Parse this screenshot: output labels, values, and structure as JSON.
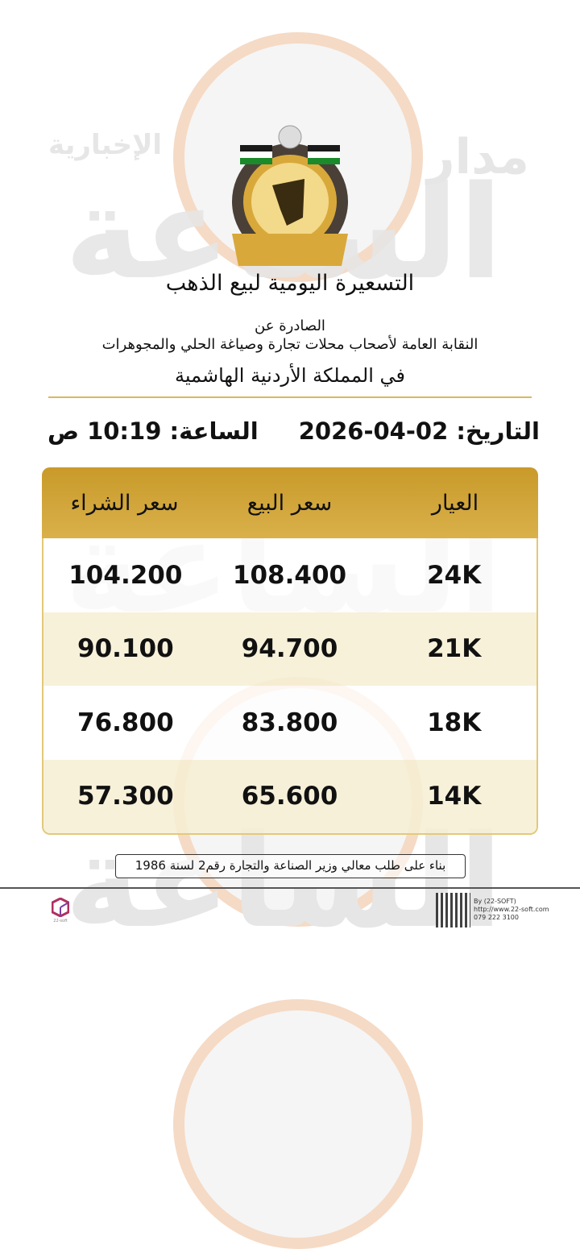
{
  "watermark": {
    "brand": "مدار الساعة",
    "subtitle": "الإخبارية"
  },
  "header": {
    "title": "التسعيرة اليومية لبيع الذهب",
    "issued_by_label": "الصادرة عن",
    "organization": "النقابة العامة لأصحاب محلات تجارة وصياغة الحلي والمجوهرات",
    "country": "في المملكة الأردنية الهاشمية"
  },
  "datetime": {
    "date_label": "التاريخ:",
    "date": "02-04-2026",
    "time_label": "الساعة:",
    "time": "10:19 ص"
  },
  "table": {
    "headers": [
      "العيار",
      "سعر البيع",
      "سعر الشراء"
    ],
    "rows": [
      {
        "karat": "24K",
        "sell": "108.400",
        "buy": "104.200"
      },
      {
        "karat": "21K",
        "sell": "94.700",
        "buy": "90.100"
      },
      {
        "karat": "18K",
        "sell": "83.800",
        "buy": "76.800"
      },
      {
        "karat": "14K",
        "sell": "65.600",
        "buy": "57.300"
      }
    ]
  },
  "note": "بناء على طلب معالي وزير الصناعة والتجارة رقم2 لسنة 1986",
  "footer": {
    "logo_text": "22-soft",
    "by": "By (22-SOFT)",
    "url": "http://www.22-soft.com",
    "phone": "079 222 3100"
  },
  "colors": {
    "header_gold": "#c99a2a",
    "row_alt": "#f6eed4",
    "border": "#e2c97a"
  }
}
